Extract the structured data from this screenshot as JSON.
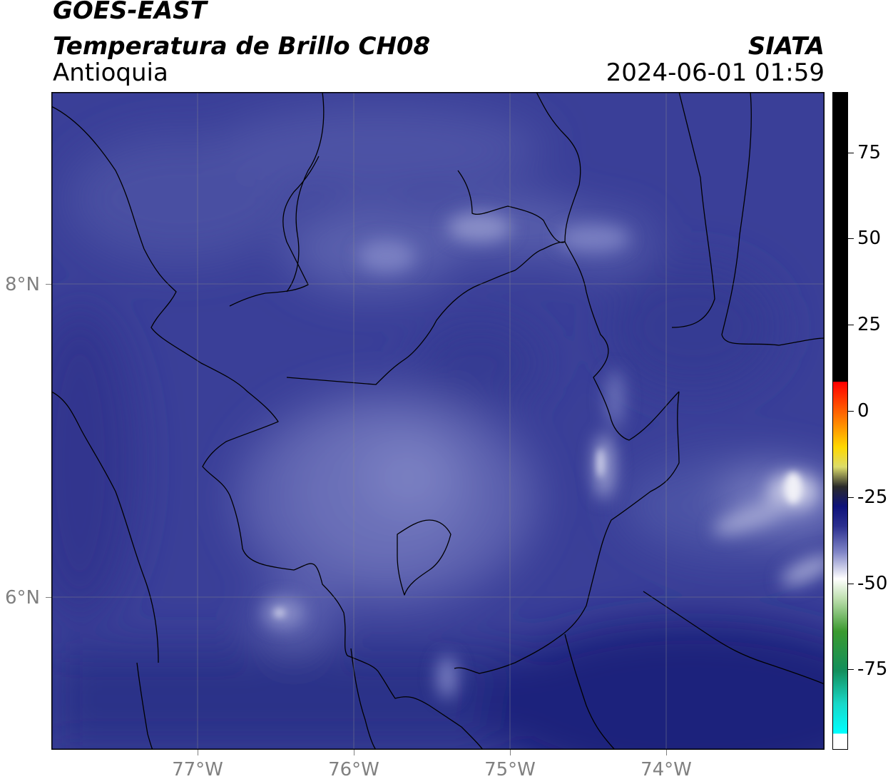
{
  "header": {
    "satellite": "GOES-EAST",
    "product": "Temperatura de Brillo CH08",
    "region": "Antioquia",
    "organization": "SIATA",
    "datetime": "2024-06-01 01:59"
  },
  "map": {
    "lat_labels": [
      "8°N",
      "6°N"
    ],
    "lon_labels": [
      "77°W",
      "76°W",
      "75°W",
      "74°W"
    ],
    "gridlines": true
  },
  "colorbar": {
    "tick_labels": [
      "75",
      "50",
      "25",
      "0",
      "-25",
      "-50",
      "-75"
    ],
    "colormap": "brightness-temperature (cyan-green-white-navy-yellow-red-black)"
  }
}
